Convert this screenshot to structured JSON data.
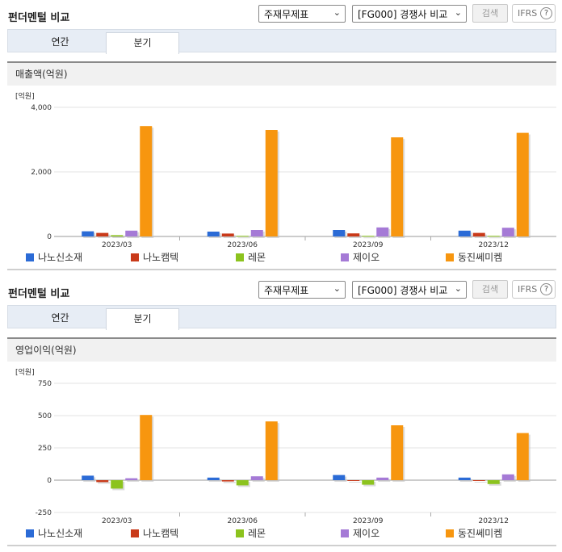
{
  "panels": [
    {
      "title": "펀더멘털 비교",
      "report_select": "주재무제표",
      "peer_select": "[FG000] 경쟁사 비교",
      "search_label": "검색",
      "ifrs_label": "IFRS",
      "help_glyph": "?",
      "tabs": [
        {
          "label": "연간",
          "active": false
        },
        {
          "label": "분기",
          "active": true
        }
      ],
      "section_title": "매출액(억원)",
      "chart_data": {
        "type": "bar",
        "unit_label": "[억원]",
        "categories": [
          "2023/03",
          "2023/06",
          "2023/09",
          "2023/12"
        ],
        "ylim": [
          0,
          4000
        ],
        "yticks": [
          0,
          2000,
          4000
        ],
        "ytick_labels": [
          "0",
          "2,000",
          "4,000"
        ],
        "grid": true,
        "legend": "bottom",
        "series": [
          {
            "name": "나노신소재",
            "color": "#2b6bd6",
            "values": [
              160,
              150,
              200,
              180
            ]
          },
          {
            "name": "나노캠텍",
            "color": "#c93a1a",
            "values": [
              110,
              90,
              95,
              110
            ]
          },
          {
            "name": "레몬",
            "color": "#8cc31e",
            "values": [
              40,
              20,
              20,
              20
            ]
          },
          {
            "name": "제이오",
            "color": "#a57ad6",
            "values": [
              180,
              200,
              280,
              270
            ]
          },
          {
            "name": "동진쎄미켐",
            "color": "#f7960f",
            "values": [
              3420,
              3300,
              3070,
              3210
            ]
          }
        ]
      }
    },
    {
      "title": "펀더멘털 비교",
      "report_select": "주재무제표",
      "peer_select": "[FG000] 경쟁사 비교",
      "search_label": "검색",
      "ifrs_label": "IFRS",
      "help_glyph": "?",
      "tabs": [
        {
          "label": "연간",
          "active": false
        },
        {
          "label": "분기",
          "active": true
        }
      ],
      "section_title": "영업이익(억원)",
      "chart_data": {
        "type": "bar",
        "unit_label": "[억원]",
        "categories": [
          "2023/03",
          "2023/06",
          "2023/09",
          "2023/12"
        ],
        "ylim": [
          -250,
          750
        ],
        "yticks": [
          -250,
          0,
          250,
          500,
          750
        ],
        "ytick_labels": [
          "-250",
          "0",
          "250",
          "500",
          "750"
        ],
        "grid": true,
        "legend": "bottom",
        "series": [
          {
            "name": "나노신소재",
            "color": "#2b6bd6",
            "values": [
              35,
              20,
              40,
              20
            ]
          },
          {
            "name": "나노캠텍",
            "color": "#c93a1a",
            "values": [
              -15,
              -10,
              -5,
              -5
            ]
          },
          {
            "name": "레몬",
            "color": "#8cc31e",
            "values": [
              -65,
              -40,
              -35,
              -30
            ]
          },
          {
            "name": "제이오",
            "color": "#a57ad6",
            "values": [
              15,
              30,
              20,
              45
            ]
          },
          {
            "name": "동진쎄미켐",
            "color": "#f7960f",
            "values": [
              505,
              455,
              425,
              365
            ]
          }
        ]
      }
    }
  ]
}
